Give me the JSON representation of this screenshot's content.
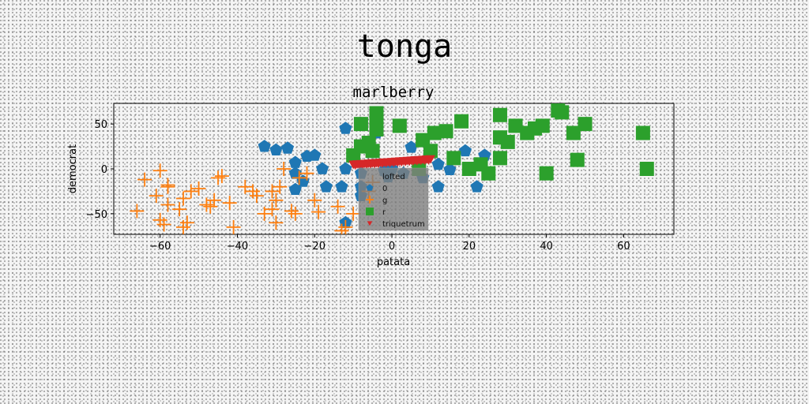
{
  "figure_title": "tonga",
  "colors": {
    "series_0": "#1f77b4",
    "series_g": "#ff7f0e",
    "series_r": "#2ca02c",
    "series_triquetrum": "#d62728",
    "legend_bg": "#808080"
  },
  "chart_data": {
    "type": "scatter",
    "title": "marlberry",
    "xlabel": "patata",
    "ylabel": "democrat",
    "xlim": [
      -72,
      73
    ],
    "ylim": [
      -73,
      73
    ],
    "xticks": [
      -60,
      -40,
      -20,
      0,
      20,
      40,
      60
    ],
    "yticks": [
      -50,
      0,
      50
    ],
    "xtick_labels": [
      "−60",
      "−40",
      "−20",
      "0",
      "20",
      "40",
      "60"
    ],
    "ytick_labels": [
      "−50",
      "0",
      "50"
    ],
    "grid": false,
    "legend": {
      "title": "lofted",
      "placement": "center",
      "entries": [
        "0",
        "g",
        "r",
        "triquetrum"
      ]
    },
    "series": [
      {
        "name": "0",
        "marker": "pentagon",
        "points": [
          [
            -33,
            25
          ],
          [
            -30,
            21
          ],
          [
            -27,
            23
          ],
          [
            -25,
            7
          ],
          [
            -22,
            14
          ],
          [
            -20,
            15
          ],
          [
            -18,
            0
          ],
          [
            -25,
            -5
          ],
          [
            -23,
            -14
          ],
          [
            -25,
            -23
          ],
          [
            -17,
            -20
          ],
          [
            -13,
            -20
          ],
          [
            -8,
            -20
          ],
          [
            -12,
            0
          ],
          [
            -8,
            -5
          ],
          [
            -2,
            -2
          ],
          [
            -1,
            -9
          ],
          [
            -12,
            45
          ],
          [
            -8,
            -30
          ],
          [
            -12,
            -60
          ],
          [
            3,
            -5
          ],
          [
            5,
            24
          ],
          [
            8,
            -10
          ],
          [
            12,
            -20
          ],
          [
            12,
            5
          ],
          [
            15,
            -1
          ],
          [
            19,
            20
          ],
          [
            22,
            -20
          ],
          [
            24,
            15
          ],
          [
            -4,
            40
          ],
          [
            0,
            0
          ]
        ]
      },
      {
        "name": "g",
        "marker": "plus",
        "points": [
          [
            -64,
            -12
          ],
          [
            -61,
            -30
          ],
          [
            -58,
            -40
          ],
          [
            -66,
            -47
          ],
          [
            -60,
            -57
          ],
          [
            -59,
            -62
          ],
          [
            -58,
            -20
          ],
          [
            -54,
            -33
          ],
          [
            -52,
            -25
          ],
          [
            -50,
            -22
          ],
          [
            -55,
            -45
          ],
          [
            -53,
            -60
          ],
          [
            -54,
            -65
          ],
          [
            -60,
            -2
          ],
          [
            -58,
            -18
          ],
          [
            -48,
            -40
          ],
          [
            -46,
            -35
          ],
          [
            -45,
            -10
          ],
          [
            -44,
            -8
          ],
          [
            -42,
            -38
          ],
          [
            -38,
            -20
          ],
          [
            -35,
            -30
          ],
          [
            -33,
            -50
          ],
          [
            -30,
            -35
          ],
          [
            -31,
            -45
          ],
          [
            -29,
            -20
          ],
          [
            -26,
            -47
          ],
          [
            -25,
            -50
          ],
          [
            -20,
            -35
          ],
          [
            -19,
            -48
          ],
          [
            -14,
            -42
          ],
          [
            -12,
            -65
          ],
          [
            -13,
            -69
          ],
          [
            -10,
            -50
          ],
          [
            -6,
            -25
          ],
          [
            -31,
            -25
          ],
          [
            -28,
            0
          ],
          [
            -22,
            -5
          ],
          [
            -30,
            -60
          ],
          [
            -36,
            -25
          ],
          [
            -41,
            -65
          ],
          [
            -24,
            -10
          ],
          [
            -47,
            -42
          ],
          [
            -5,
            -15
          ]
        ]
      },
      {
        "name": "r",
        "marker": "square",
        "points": [
          [
            -8,
            50
          ],
          [
            -4,
            62
          ],
          [
            -4,
            57
          ],
          [
            -4,
            44
          ],
          [
            -8,
            25
          ],
          [
            -10,
            15
          ],
          [
            -5,
            20
          ],
          [
            2,
            48
          ],
          [
            8,
            32
          ],
          [
            11,
            40
          ],
          [
            14,
            42
          ],
          [
            18,
            53
          ],
          [
            16,
            12
          ],
          [
            20,
            0
          ],
          [
            23,
            5
          ],
          [
            25,
            -5
          ],
          [
            28,
            35
          ],
          [
            30,
            30
          ],
          [
            28,
            12
          ],
          [
            35,
            40
          ],
          [
            37,
            45
          ],
          [
            39,
            48
          ],
          [
            43,
            65
          ],
          [
            44,
            63
          ],
          [
            47,
            40
          ],
          [
            50,
            50
          ],
          [
            48,
            10
          ],
          [
            65,
            40
          ],
          [
            66,
            0
          ],
          [
            40,
            -5
          ],
          [
            32,
            48
          ],
          [
            10,
            20
          ],
          [
            7,
            0
          ],
          [
            28,
            60
          ],
          [
            -6,
            29
          ]
        ]
      },
      {
        "name": "triquetrum",
        "marker": "triangle-down",
        "points": [
          [
            -10,
            5
          ],
          [
            -9,
            5.3
          ],
          [
            -8,
            5.6
          ],
          [
            -7,
            5.9
          ],
          [
            -6,
            6.2
          ],
          [
            -5,
            6.5
          ],
          [
            -4,
            6.8
          ],
          [
            -3,
            7.1
          ],
          [
            -2,
            7.4
          ],
          [
            -1,
            7.7
          ],
          [
            0,
            8
          ],
          [
            1,
            8.3
          ],
          [
            2,
            8.6
          ],
          [
            3,
            8.9
          ],
          [
            4,
            9.2
          ],
          [
            5,
            9.5
          ],
          [
            6,
            9.8
          ],
          [
            7,
            10.1
          ],
          [
            8,
            10.4
          ],
          [
            9,
            10.7
          ],
          [
            10,
            11
          ],
          [
            -9.5,
            4.2
          ],
          [
            -8.5,
            4.5
          ],
          [
            -7.5,
            4.8
          ],
          [
            -6.5,
            5.1
          ],
          [
            -5.5,
            5.4
          ],
          [
            -4.5,
            5.7
          ],
          [
            -3.5,
            6.0
          ],
          [
            -2.5,
            6.3
          ],
          [
            -1.5,
            6.6
          ],
          [
            -0.5,
            6.9
          ],
          [
            0.5,
            7.2
          ],
          [
            1.5,
            7.5
          ],
          [
            2.5,
            7.8
          ],
          [
            3.5,
            8.1
          ],
          [
            4.5,
            8.4
          ],
          [
            5.5,
            8.7
          ],
          [
            6.5,
            9.0
          ],
          [
            7.5,
            9.3
          ],
          [
            8.5,
            9.6
          ],
          [
            9.5,
            9.9
          ]
        ]
      }
    ]
  }
}
